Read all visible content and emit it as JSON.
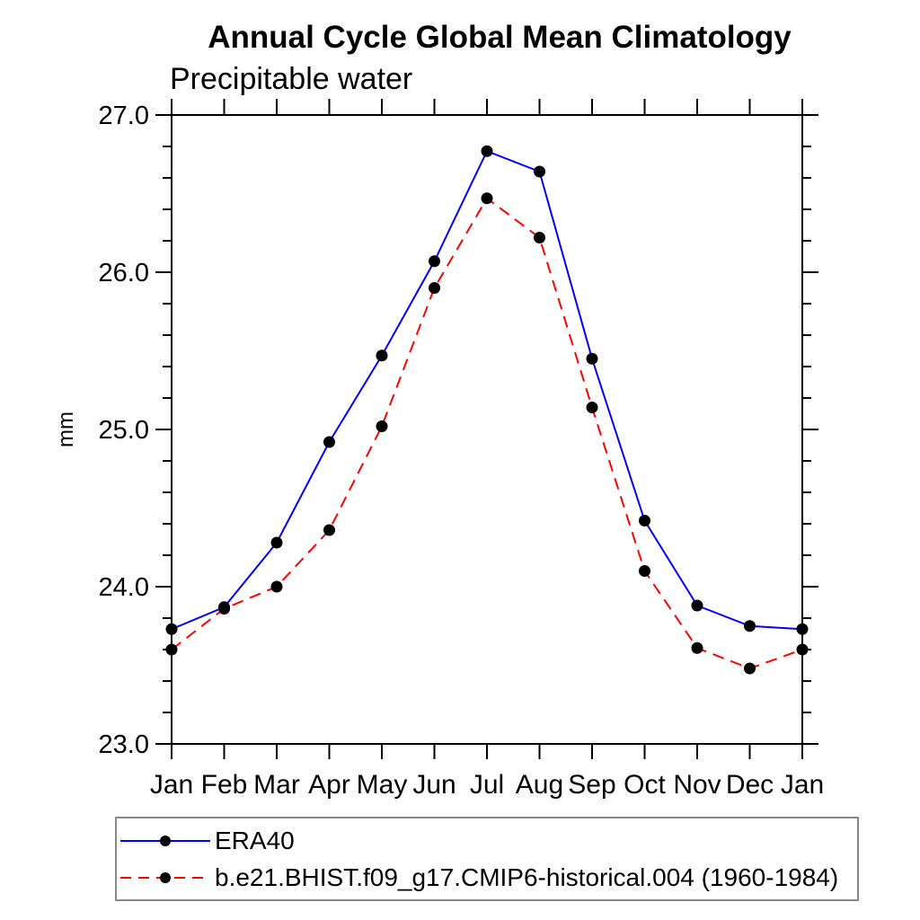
{
  "page": {
    "background": "#ffffff"
  },
  "chart_data": {
    "type": "line",
    "title": "Annual Cycle Global Mean Climatology",
    "subtitle": "Precipitable water",
    "xlabel": "",
    "ylabel": "mm",
    "categories": [
      "Jan",
      "Feb",
      "Mar",
      "Apr",
      "May",
      "Jun",
      "Jul",
      "Aug",
      "Sep",
      "Oct",
      "Nov",
      "Dec",
      "Jan"
    ],
    "ylim": [
      23.0,
      27.0
    ],
    "yticks_major": {
      "values": [
        23.0,
        24.0,
        25.0,
        26.0,
        27.0
      ],
      "labels": [
        "23.0",
        "24.0",
        "25.0",
        "26.0",
        "27.0"
      ]
    },
    "ytick_minor_step": 0.2,
    "grid": false,
    "frame": true,
    "tick_direction": "outward",
    "legend_position": "bottom-left-box",
    "axis_color": "#000000",
    "marker_color": "#000000",
    "series": [
      {
        "name": "ERA40",
        "line_color": "#0000ff",
        "line_style": "solid",
        "marker": "filled-circle",
        "values": [
          23.73,
          23.87,
          24.28,
          24.92,
          25.47,
          26.07,
          26.77,
          26.64,
          25.45,
          24.42,
          23.88,
          23.75,
          23.73
        ]
      },
      {
        "name": "b.e21.BHIST.f09_g17.CMIP6-historical.004 (1960-1984)",
        "line_color": "#ff0000",
        "line_style": "dashed",
        "marker": "filled-circle",
        "values": [
          23.6,
          23.86,
          24.0,
          24.36,
          25.02,
          25.9,
          26.47,
          26.22,
          25.14,
          24.1,
          23.61,
          23.48,
          23.6
        ]
      }
    ]
  }
}
